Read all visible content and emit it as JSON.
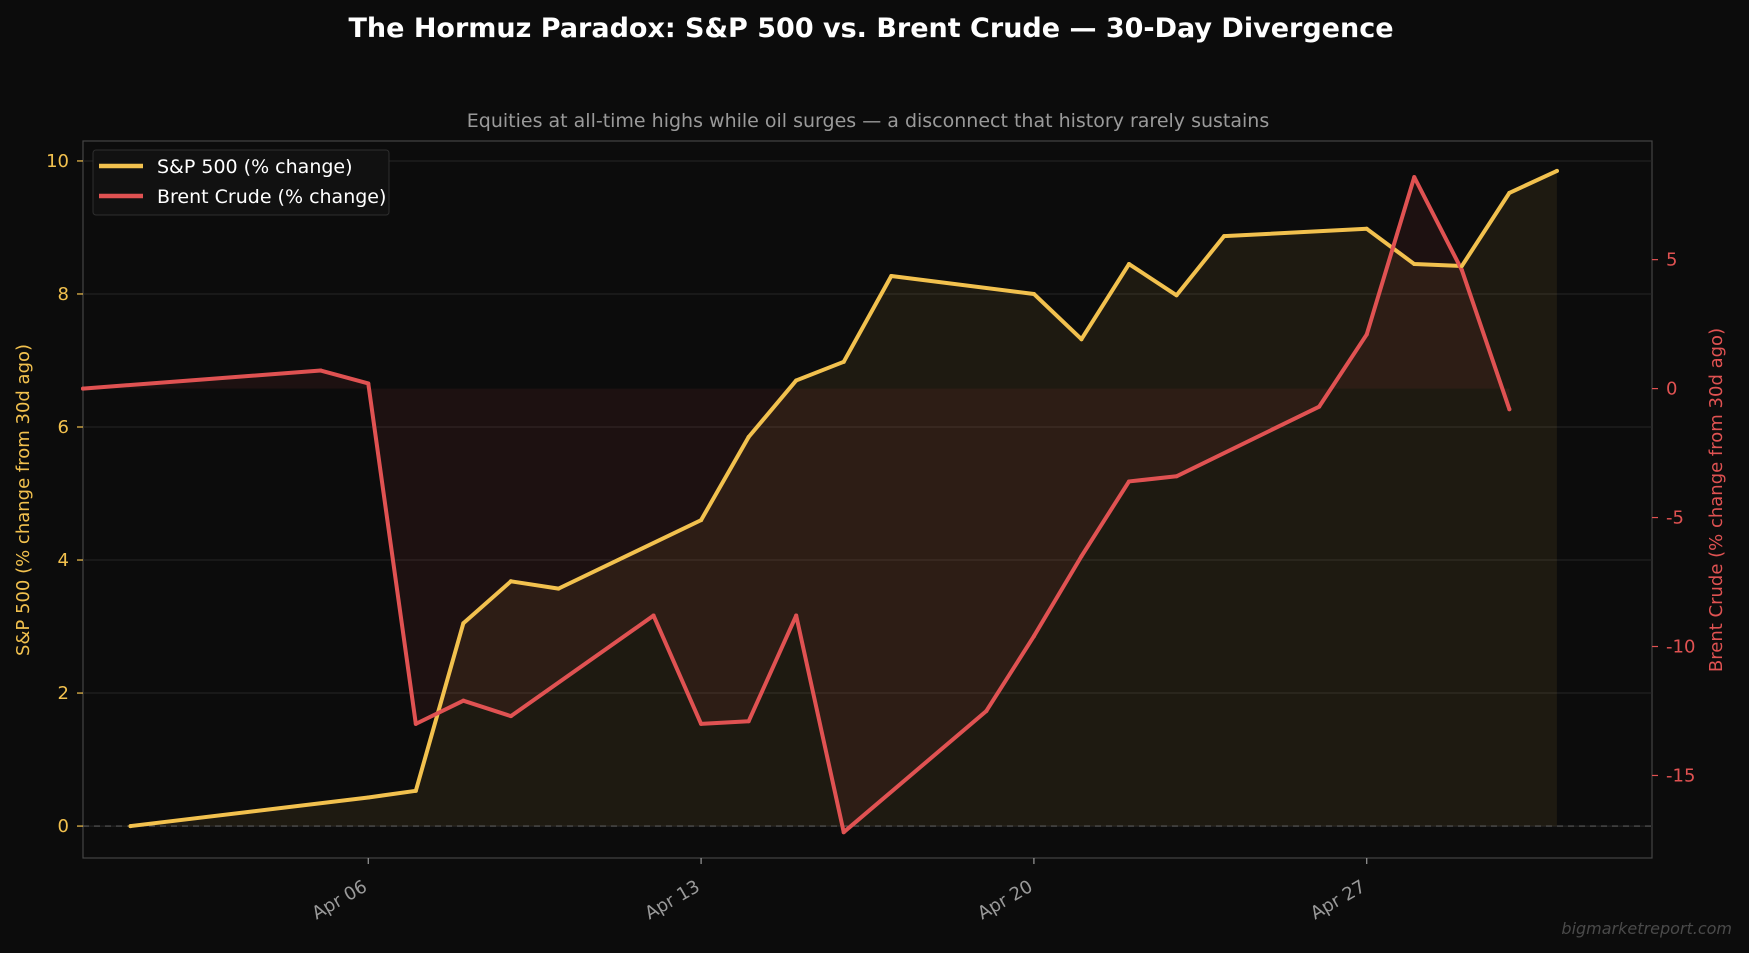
{
  "chart_data": {
    "type": "line",
    "title": "The Hormuz Paradox: S&P 500 vs. Brent Crude — 30-Day Divergence",
    "subtitle": "Equities at all-time highs while oil surges — a disconnect that history rarely sustains",
    "ylabel_left": "S&P 500 (% change from 30d ago)",
    "ylabel_right": "Brent Crude (% change from 30d ago)",
    "watermark": "bigmarketreport.com",
    "legend_position": "top-left",
    "grid": true,
    "x_ticks": [
      "2026-04-06",
      "2026-04-13",
      "2026-04-20",
      "2026-04-27"
    ],
    "x_tick_labels": [
      "Apr 06",
      "Apr 13",
      "Apr 20",
      "Apr 27"
    ],
    "xlim": [
      "2026-03-31",
      "2026-05-03"
    ],
    "ylim_left": [
      -0.48,
      10.3
    ],
    "ylim_right": [
      -18.2,
      9.6
    ],
    "y_ticks_left": [
      0,
      2,
      4,
      6,
      8,
      10
    ],
    "y_ticks_right": [
      -15,
      -10,
      -5,
      0,
      5
    ],
    "series": [
      {
        "name": "S&P 500 (% change)",
        "axis": "left",
        "color": "#f2c14e",
        "points": [
          [
            "2026-04-01",
            0.0
          ],
          [
            "2026-04-06",
            0.43
          ],
          [
            "2026-04-07",
            0.53
          ],
          [
            "2026-04-08",
            3.05
          ],
          [
            "2026-04-09",
            3.68
          ],
          [
            "2026-04-10",
            3.57
          ],
          [
            "2026-04-13",
            4.6
          ],
          [
            "2026-04-14",
            5.85
          ],
          [
            "2026-04-15",
            6.7
          ],
          [
            "2026-04-16",
            6.98
          ],
          [
            "2026-04-17",
            8.27
          ],
          [
            "2026-04-20",
            8.0
          ],
          [
            "2026-04-21",
            7.32
          ],
          [
            "2026-04-22",
            8.45
          ],
          [
            "2026-04-23",
            7.98
          ],
          [
            "2026-04-24",
            8.87
          ],
          [
            "2026-04-27",
            8.98
          ],
          [
            "2026-04-28",
            8.45
          ],
          [
            "2026-04-29",
            8.42
          ],
          [
            "2026-04-30",
            9.52
          ],
          [
            "2026-05-01",
            9.85
          ]
        ]
      },
      {
        "name": "Brent Crude (% change)",
        "axis": "right",
        "color": "#e05252",
        "points": [
          [
            "2026-03-31",
            0.0
          ],
          [
            "2026-04-05",
            0.7
          ],
          [
            "2026-04-06",
            0.2
          ],
          [
            "2026-04-07",
            -13.0
          ],
          [
            "2026-04-08",
            -12.1
          ],
          [
            "2026-04-09",
            -12.7
          ],
          [
            "2026-04-12",
            -8.8
          ],
          [
            "2026-04-13",
            -13.0
          ],
          [
            "2026-04-14",
            -12.9
          ],
          [
            "2026-04-15",
            -8.8
          ],
          [
            "2026-04-16",
            -17.2
          ],
          [
            "2026-04-19",
            -12.5
          ],
          [
            "2026-04-20",
            -9.6
          ],
          [
            "2026-04-21",
            -6.5
          ],
          [
            "2026-04-22",
            -3.6
          ],
          [
            "2026-04-23",
            -3.4
          ],
          [
            "2026-04-26",
            -0.7
          ],
          [
            "2026-04-27",
            2.1
          ],
          [
            "2026-04-28",
            8.2
          ],
          [
            "2026-04-29",
            4.6
          ],
          [
            "2026-04-30",
            -0.8
          ]
        ]
      }
    ]
  }
}
